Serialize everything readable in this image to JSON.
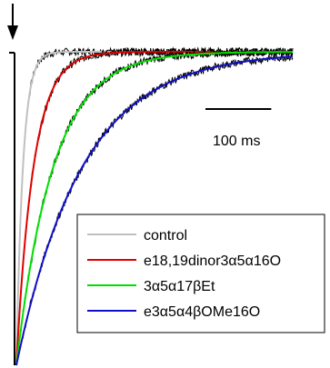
{
  "chart_data": {
    "type": "line",
    "title": "",
    "xlabel": "",
    "ylabel": "",
    "xlim": [
      0,
      420
    ],
    "ylim": [
      -1.0,
      0.0
    ],
    "grid": false,
    "legend_position": "bottom-right",
    "stimulus_marker": "down-arrow",
    "scale_bar": {
      "value": 100,
      "label": "100 ms"
    },
    "colors": {
      "control": "#c0c0c0",
      "red": "#e00000",
      "green": "#00e000",
      "blue": "#1010c8",
      "data_trace": "#000000"
    },
    "series": [
      {
        "name": "control",
        "color": "#c0c0c0",
        "tau_ms": 10
      },
      {
        "name": "e18,19dinor3α5α16O",
        "color": "#e00000",
        "tau_ms": 26
      },
      {
        "name": "3α5α17βEt",
        "color": "#00e000",
        "tau_ms": 56
      },
      {
        "name": "e3α5α4βOMe16O",
        "color": "#1010c8",
        "tau_ms": 100
      }
    ]
  }
}
